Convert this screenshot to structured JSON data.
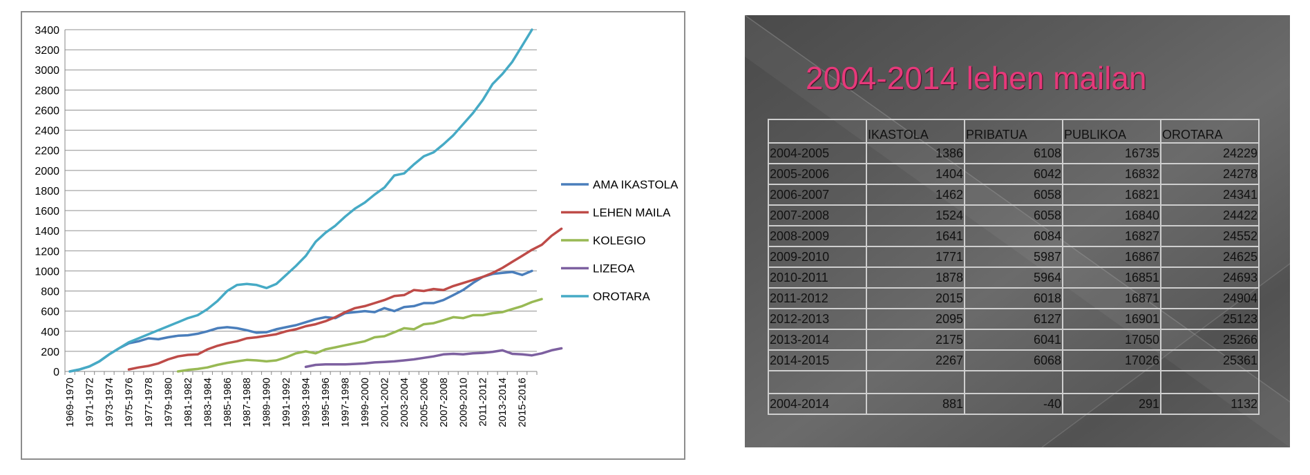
{
  "chart_data": {
    "type": "line",
    "title": "",
    "xlabel": "",
    "ylabel": "",
    "ylim": [
      0,
      3400
    ],
    "yticks": [
      0,
      200,
      400,
      600,
      800,
      1000,
      1200,
      1400,
      1600,
      1800,
      2000,
      2200,
      2400,
      2600,
      2800,
      3000,
      3200,
      3400
    ],
    "grid": true,
    "legend_position": "right",
    "x_start_year": 1969,
    "x_tick_labels": [
      "1969-1970",
      "1971-1972",
      "1973-1974",
      "1975-1976",
      "1977-1978",
      "1979-1980",
      "1981-1982",
      "1983-1984",
      "1985-1986",
      "1987-1988",
      "1989-1990",
      "1991-1992",
      "1993-1994",
      "1995-1996",
      "1997-1998",
      "1999-2000",
      "2001-2002",
      "2003-2004",
      "2005-2006",
      "2007-2008",
      "2009-2010",
      "2011-2012",
      "2013-2014",
      "2015-2016"
    ],
    "series": [
      {
        "name": "AMA IKASTOLA",
        "color": "#4a7ebb",
        "start": 1969,
        "values": [
          0,
          20,
          50,
          100,
          170,
          230,
          280,
          300,
          330,
          320,
          340,
          355,
          360,
          375,
          400,
          430,
          440,
          430,
          410,
          385,
          390,
          420,
          440,
          460,
          490,
          520,
          540,
          530,
          580,
          590,
          600,
          590,
          630,
          600,
          640,
          650,
          680,
          680,
          710,
          760,
          810,
          880,
          940,
          970,
          980,
          990,
          960,
          1000
        ]
      },
      {
        "name": "LEHEN MAILA",
        "color": "#be4b48",
        "start": 1975,
        "values": [
          20,
          40,
          55,
          80,
          120,
          150,
          165,
          170,
          220,
          255,
          280,
          300,
          330,
          340,
          355,
          370,
          400,
          420,
          450,
          470,
          500,
          540,
          590,
          630,
          650,
          680,
          710,
          750,
          760,
          810,
          800,
          820,
          810,
          850,
          880,
          910,
          940,
          980,
          1030,
          1090,
          1150,
          1210,
          1260,
          1350,
          1420
        ]
      },
      {
        "name": "KOLEGIO",
        "color": "#98b954",
        "start": 1980,
        "values": [
          0,
          15,
          25,
          40,
          65,
          85,
          100,
          115,
          110,
          100,
          110,
          140,
          180,
          200,
          180,
          220,
          240,
          260,
          280,
          300,
          340,
          350,
          390,
          430,
          420,
          470,
          480,
          510,
          540,
          530,
          560,
          560,
          580,
          590,
          620,
          650,
          690,
          720
        ]
      },
      {
        "name": "LIZEOA",
        "color": "#7d60a0",
        "start": 1993,
        "values": [
          45,
          65,
          70,
          70,
          70,
          75,
          80,
          90,
          95,
          100,
          110,
          120,
          135,
          150,
          170,
          175,
          170,
          180,
          185,
          195,
          210,
          175,
          170,
          160,
          180,
          210,
          230
        ]
      },
      {
        "name": "OROTARA",
        "color": "#46aac5",
        "start": 1969,
        "values": [
          0,
          20,
          50,
          100,
          170,
          230,
          290,
          330,
          370,
          410,
          450,
          490,
          530,
          560,
          620,
          700,
          800,
          860,
          870,
          860,
          830,
          870,
          960,
          1050,
          1150,
          1290,
          1380,
          1450,
          1540,
          1620,
          1680,
          1760,
          1830,
          1950,
          1970,
          2060,
          2140,
          2180,
          2260,
          2350,
          2460,
          2570,
          2700,
          2860,
          2960,
          3080,
          3240,
          3400
        ]
      }
    ]
  },
  "slide": {
    "title": "2004-2014 lehen mailan",
    "headers": [
      "",
      "IKASTOLA",
      "PRIBATUA",
      "PUBLIKOA",
      "OROTARA"
    ],
    "rows": [
      {
        "label": "2004-2005",
        "ikastola": "1386",
        "pribatua": "6108",
        "publikoa": "16735",
        "orotara": "24229"
      },
      {
        "label": "2005-2006",
        "ikastola": "1404",
        "pribatua": "6042",
        "publikoa": "16832",
        "orotara": "24278"
      },
      {
        "label": "2006-2007",
        "ikastola": "1462",
        "pribatua": "6058",
        "publikoa": "16821",
        "orotara": "24341"
      },
      {
        "label": "2007-2008",
        "ikastola": "1524",
        "pribatua": "6058",
        "publikoa": "16840",
        "orotara": "24422"
      },
      {
        "label": "2008-2009",
        "ikastola": "1641",
        "pribatua": "6084",
        "publikoa": "16827",
        "orotara": "24552"
      },
      {
        "label": "2009-2010",
        "ikastola": "1771",
        "pribatua": "5987",
        "publikoa": "16867",
        "orotara": "24625"
      },
      {
        "label": "2010-2011",
        "ikastola": "1878",
        "pribatua": "5964",
        "publikoa": "16851",
        "orotara": "24693"
      },
      {
        "label": "2011-2012",
        "ikastola": "2015",
        "pribatua": "6018",
        "publikoa": "16871",
        "orotara": "24904"
      },
      {
        "label": "2012-2013",
        "ikastola": "2095",
        "pribatua": "6127",
        "publikoa": "16901",
        "orotara": "25123"
      },
      {
        "label": "2013-2014",
        "ikastola": "2175",
        "pribatua": "6041",
        "publikoa": "17050",
        "orotara": "25266"
      },
      {
        "label": "2014-2015",
        "ikastola": "2267",
        "pribatua": "6068",
        "publikoa": "17026",
        "orotara": "25361"
      }
    ],
    "summary": {
      "label": "2004-2014",
      "ikastola": "881",
      "pribatua": "-40",
      "publikoa": "291",
      "orotara": "1132"
    }
  }
}
